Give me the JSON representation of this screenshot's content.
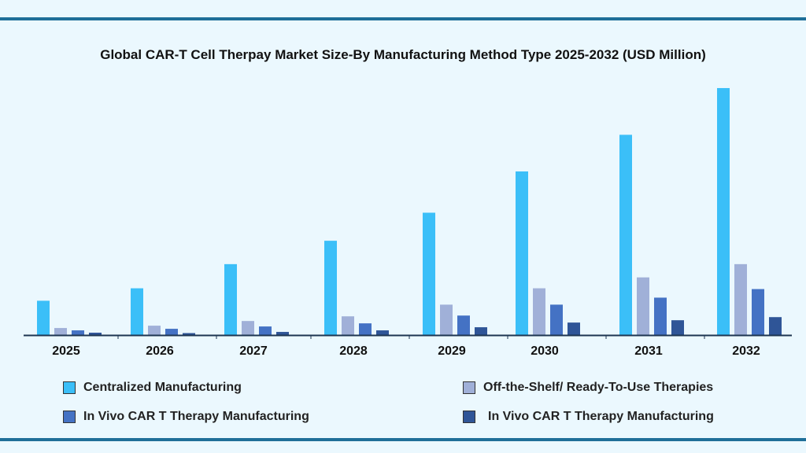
{
  "chart_data": {
    "type": "bar",
    "title": "Global CAR-T Cell Therpay Market Size-By Manufacturing Method Type 2025-2032 (USD Million)",
    "xlabel": "",
    "ylabel": "",
    "categories": [
      "2025",
      "2026",
      "2027",
      "2028",
      "2029",
      "2030",
      "2031",
      "2032"
    ],
    "series": [
      {
        "name": "Centralized Manufacturing",
        "color": "#3bbff8",
        "values": [
          44,
          60,
          91,
          121,
          157,
          210,
          257,
          317
        ]
      },
      {
        "name": "Off-the-Shelf/ Ready-To-Use Therapies",
        "color": "#a0b0d8",
        "values": [
          9,
          12,
          18,
          24,
          39,
          60,
          74,
          91
        ]
      },
      {
        "name": "In Vivo CAR T Therapy Manufacturing",
        "color": "#4472c4",
        "values": [
          6,
          8,
          11,
          15,
          25,
          39,
          48,
          59
        ]
      },
      {
        "name": "In Vivo CAR T Therapy Manufacturing",
        "color": "#2f5597",
        "values": [
          3,
          2.5,
          4,
          6,
          10,
          16,
          19,
          23
        ]
      }
    ],
    "ylim": [
      0,
      320
    ],
    "grid": false,
    "y_axis_shown": false,
    "legend_position": "bottom"
  }
}
